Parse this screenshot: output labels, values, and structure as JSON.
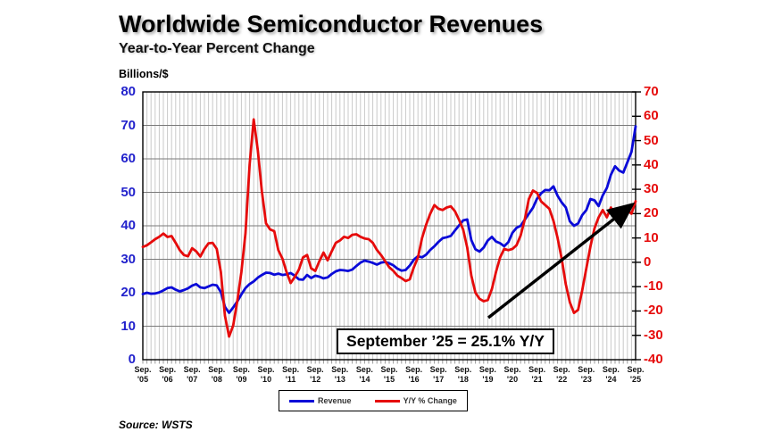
{
  "title": "Worldwide Semiconductor Revenues",
  "subtitle": "Year-to-Year Percent Change",
  "source": "Source: WSTS",
  "annotation": {
    "text": "September ’25 = 25.1% Y/Y"
  },
  "legend": {
    "revenue_label": "Revenue",
    "yoy_label": "Y/Y % Change"
  },
  "left_axis": {
    "unit_label": "Billions/$",
    "color": "#2222cc",
    "ticks": [
      0,
      10,
      20,
      30,
      40,
      50,
      60,
      70,
      80
    ]
  },
  "right_axis": {
    "color": "#e60b0b",
    "ticks": [
      -40,
      -30,
      -20,
      -10,
      0,
      10,
      20,
      30,
      40,
      50,
      60,
      70
    ]
  },
  "x_axis": {
    "month_label": "Sep.",
    "year_labels": [
      "'05",
      "'06",
      "'07",
      "'08",
      "'09",
      "'10",
      "'11",
      "'12",
      "'13",
      "'14",
      "'15",
      "'16",
      "'17",
      "'18",
      "'19",
      "'20",
      "'21",
      "'22",
      "'23",
      "'24",
      "'25"
    ]
  },
  "chart_data": {
    "type": "line",
    "title": "Worldwide Semiconductor Revenues",
    "subtitle": "Year-to-Year Percent Change",
    "x_start": "Sep 2005",
    "x_end": "Sep 2025",
    "x_interval_months": 2,
    "left_axis_range": [
      0,
      80
    ],
    "right_axis_range": [
      -40,
      70
    ],
    "grid": true,
    "legend_position": "bottom",
    "annotation": "September '25 = 25.1% Y/Y",
    "series": [
      {
        "name": "Revenue",
        "axis": "left",
        "unit": "Billions/$ (monthly)",
        "color": "#0a0ad8",
        "values": [
          19.6,
          20.0,
          19.7,
          19.8,
          20.1,
          20.7,
          21.4,
          21.6,
          20.9,
          20.4,
          20.8,
          21.3,
          22.1,
          22.6,
          21.6,
          21.4,
          21.9,
          22.4,
          22.2,
          20.2,
          15.8,
          14.0,
          15.6,
          17.4,
          19.5,
          21.4,
          22.6,
          23.4,
          24.5,
          25.3,
          26.0,
          25.9,
          25.4,
          25.7,
          25.3,
          25.5,
          25.9,
          25.1,
          24.0,
          23.9,
          25.3,
          24.4,
          25.1,
          24.8,
          24.3,
          24.6,
          25.6,
          26.4,
          26.8,
          26.7,
          26.5,
          26.9,
          28.0,
          29.0,
          29.6,
          29.3,
          28.9,
          28.4,
          29.0,
          29.2,
          28.8,
          28.2,
          27.2,
          26.6,
          26.8,
          28.1,
          29.9,
          30.9,
          30.6,
          31.4,
          32.8,
          33.9,
          35.2,
          36.3,
          36.6,
          37.0,
          38.6,
          40.1,
          41.6,
          41.9,
          35.7,
          33.0,
          32.3,
          33.5,
          35.6,
          36.7,
          35.3,
          34.8,
          33.9,
          35.1,
          37.9,
          39.4,
          40.0,
          41.8,
          43.6,
          45.4,
          48.1,
          49.7,
          50.7,
          50.6,
          51.8,
          49.0,
          47.0,
          45.5,
          41.3,
          40.0,
          40.7,
          43.2,
          44.7,
          48.0,
          47.6,
          45.9,
          49.1,
          51.3,
          55.3,
          57.8,
          56.5,
          55.9,
          59.0,
          62.1,
          69.7
        ]
      },
      {
        "name": "Y/Y % Change",
        "axis": "right",
        "unit": "%",
        "color": "#e60b0b",
        "values": [
          6.3,
          7.0,
          8.2,
          9.5,
          10.5,
          11.8,
          10.4,
          10.8,
          8.0,
          5.0,
          3.0,
          2.5,
          5.8,
          4.5,
          2.4,
          5.5,
          7.8,
          8.0,
          5.5,
          -4.0,
          -22.0,
          -30.5,
          -26.0,
          -16.0,
          -4.0,
          12.0,
          40.0,
          58.7,
          46.0,
          29.0,
          16.0,
          13.5,
          12.8,
          5.0,
          1.5,
          -4.0,
          -8.5,
          -6.0,
          -3.0,
          2.0,
          3.0,
          -2.5,
          -3.5,
          0.5,
          4.0,
          0.8,
          4.5,
          8.0,
          9.0,
          10.5,
          10.0,
          11.3,
          11.5,
          10.5,
          9.8,
          9.5,
          8.0,
          5.1,
          3.0,
          0.5,
          -2.0,
          -3.5,
          -5.5,
          -6.5,
          -7.7,
          -7.0,
          -2.0,
          2.0,
          10.0,
          15.5,
          20.0,
          23.5,
          22.0,
          21.5,
          22.5,
          23.0,
          21.0,
          17.5,
          13.5,
          6.0,
          -5.5,
          -12.5,
          -15.0,
          -16.0,
          -15.5,
          -11.0,
          -4.0,
          2.0,
          5.5,
          5.0,
          5.5,
          7.0,
          11.0,
          17.5,
          26.0,
          29.5,
          28.5,
          25.0,
          23.5,
          22.0,
          17.0,
          10.0,
          1.5,
          -9.0,
          -16.5,
          -20.8,
          -19.5,
          -11.5,
          -2.5,
          6.5,
          14.0,
          18.5,
          21.5,
          18.5,
          22.5,
          18.5,
          19.5,
          18.0,
          21.5,
          20.0,
          25.1
        ]
      }
    ]
  },
  "style": {
    "v_grid_color": "#c9c9c9",
    "h_grid_color": "#7a7a7a",
    "frame_color": "#000000",
    "arrow_color": "#000000"
  }
}
